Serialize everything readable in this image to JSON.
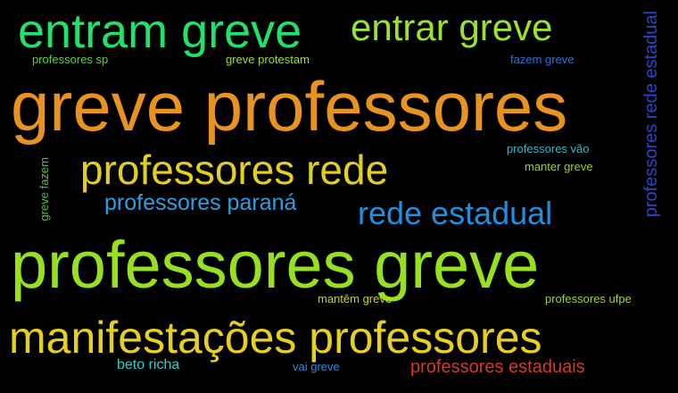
{
  "words": {
    "entram_greve": {
      "text": "entram greve",
      "color": "#22e06a"
    },
    "entrar_greve": {
      "text": "entrar greve",
      "color": "#9be22c"
    },
    "professores_sp": {
      "text": "professores sp",
      "color": "#5fce3c"
    },
    "greve_protestam": {
      "text": "greve protestam",
      "color": "#9fdc3a"
    },
    "fazem_greve": {
      "text": "fazem greve",
      "color": "#2d6fd8"
    },
    "greve_professores": {
      "text": "greve professores",
      "color": "#e8921f"
    },
    "professores_rede_estadual": {
      "text": "professores rede estadual",
      "color": "#2b45c8"
    },
    "professores_vao": {
      "text": "professores vão",
      "color": "#35b7c7"
    },
    "manter_greve": {
      "text": "manter greve",
      "color": "#9ccc2f"
    },
    "professores_rede": {
      "text": "professores rede",
      "color": "#e2cf1e"
    },
    "greve_fazem": {
      "text": "greve fazem",
      "color": "#4fbf3e"
    },
    "professores_parana": {
      "text": "professores paraná",
      "color": "#2f9ee0"
    },
    "rede_estadual": {
      "text": "rede estadual",
      "color": "#1f8fe0"
    },
    "professores_greve": {
      "text": "professores greve",
      "color": "#97e020"
    },
    "mantem_greve": {
      "text": "mantêm greve",
      "color": "#c9d223"
    },
    "professores_ufpe": {
      "text": "professores ufpe",
      "color": "#9fd232"
    },
    "manifestacoes_professores": {
      "text": "manifestações professores",
      "color": "#e6cf20"
    },
    "beto_richa": {
      "text": "beto richa",
      "color": "#2fd0c9"
    },
    "vai_greve": {
      "text": "vai greve",
      "color": "#2f8bd8"
    },
    "professores_estaduais": {
      "text": "professores estaduais",
      "color": "#d83a1f"
    }
  }
}
